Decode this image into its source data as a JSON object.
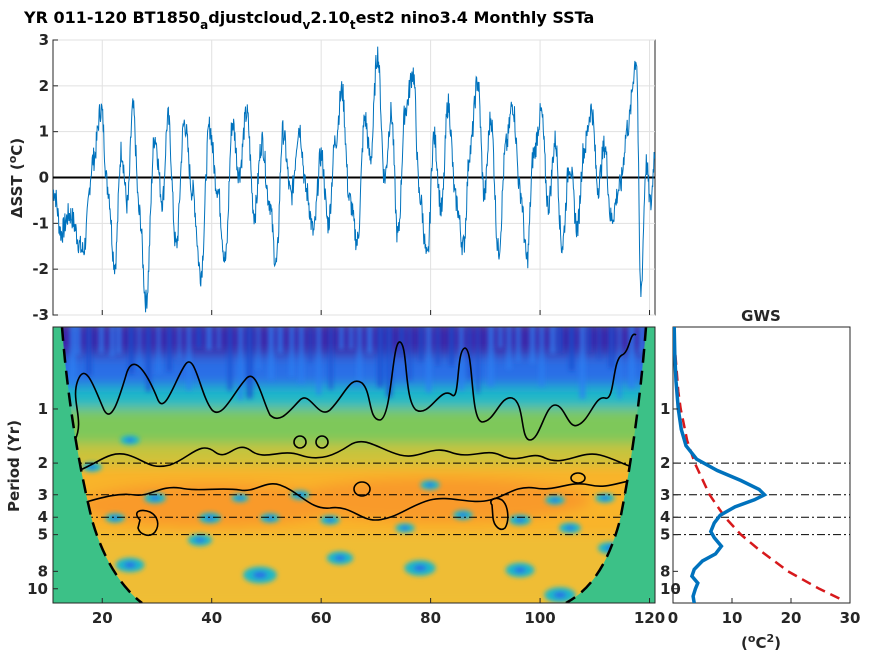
{
  "title": {
    "parts": [
      {
        "text": "YR 011-120 BT1850",
        "sub": false
      },
      {
        "text": "a",
        "sub": true
      },
      {
        "text": "djustcloud",
        "sub": false
      },
      {
        "text": "v",
        "sub": true
      },
      {
        "text": "2.10",
        "sub": false
      },
      {
        "text": "t",
        "sub": true
      },
      {
        "text": "est2 nino3.4 Monthly SSTa",
        "sub": false
      }
    ]
  },
  "chart_data": [
    {
      "type": "line",
      "panel": "timeseries",
      "ylabel_prefix": "ΔSST (",
      "ylabel_super": "o",
      "ylabel_suffix": "C)",
      "xlim": [
        11,
        121
      ],
      "ylim": [
        -3,
        3
      ],
      "yticks": [
        "-3",
        "-2",
        "-1",
        "0",
        "1",
        "2",
        "3"
      ],
      "yticks_values": [
        -3,
        -2,
        -1,
        0,
        1,
        2,
        3
      ],
      "grid": true,
      "line_color": "#0072bd",
      "zero_line_color": "#000000",
      "peaks": [
        {
          "x": 11.2,
          "y": -0.3
        },
        {
          "x": 12.5,
          "y": -1.2
        },
        {
          "x": 14.0,
          "y": -0.8
        },
        {
          "x": 16.5,
          "y": -1.6
        },
        {
          "x": 18.4,
          "y": 0.4
        },
        {
          "x": 19.8,
          "y": 1.5
        },
        {
          "x": 21.0,
          "y": -0.2
        },
        {
          "x": 22.3,
          "y": -1.9
        },
        {
          "x": 23.5,
          "y": 0.6
        },
        {
          "x": 24.6,
          "y": -0.6
        },
        {
          "x": 25.6,
          "y": 1.5
        },
        {
          "x": 26.8,
          "y": -0.8
        },
        {
          "x": 28.0,
          "y": -2.7
        },
        {
          "x": 29.6,
          "y": 0.9
        },
        {
          "x": 31.0,
          "y": -0.5
        },
        {
          "x": 32.0,
          "y": 1.3
        },
        {
          "x": 33.5,
          "y": -1.5
        },
        {
          "x": 35.0,
          "y": 1.2
        },
        {
          "x": 36.5,
          "y": -0.3
        },
        {
          "x": 38.0,
          "y": -2.1
        },
        {
          "x": 39.6,
          "y": 1.1
        },
        {
          "x": 41.0,
          "y": -0.2
        },
        {
          "x": 42.5,
          "y": -1.8
        },
        {
          "x": 43.8,
          "y": 1.2
        },
        {
          "x": 45.0,
          "y": 0.1
        },
        {
          "x": 46.4,
          "y": 1.4
        },
        {
          "x": 47.8,
          "y": -0.8
        },
        {
          "x": 49.2,
          "y": 0.8
        },
        {
          "x": 50.5,
          "y": -0.5
        },
        {
          "x": 51.8,
          "y": -1.9
        },
        {
          "x": 53.0,
          "y": 1.0
        },
        {
          "x": 54.5,
          "y": -0.4
        },
        {
          "x": 56.0,
          "y": 1.1
        },
        {
          "x": 57.3,
          "y": -0.3
        },
        {
          "x": 58.6,
          "y": -1.2
        },
        {
          "x": 60.0,
          "y": 0.5
        },
        {
          "x": 61.3,
          "y": -1.0
        },
        {
          "x": 62.6,
          "y": 0.8
        },
        {
          "x": 63.8,
          "y": 1.9
        },
        {
          "x": 65.2,
          "y": -0.5
        },
        {
          "x": 66.6,
          "y": -1.4
        },
        {
          "x": 68.0,
          "y": 1.3
        },
        {
          "x": 69.0,
          "y": 0.4
        },
        {
          "x": 70.3,
          "y": 2.7
        },
        {
          "x": 71.6,
          "y": 0.0
        },
        {
          "x": 72.8,
          "y": 1.4
        },
        {
          "x": 74.0,
          "y": -1.3
        },
        {
          "x": 75.4,
          "y": 1.5
        },
        {
          "x": 76.8,
          "y": 2.3
        },
        {
          "x": 78.0,
          "y": -0.4
        },
        {
          "x": 79.4,
          "y": -1.8
        },
        {
          "x": 80.6,
          "y": 0.9
        },
        {
          "x": 82.0,
          "y": -0.7
        },
        {
          "x": 83.2,
          "y": 1.6
        },
        {
          "x": 84.6,
          "y": -0.5
        },
        {
          "x": 86.0,
          "y": -1.5
        },
        {
          "x": 87.2,
          "y": 0.6
        },
        {
          "x": 88.6,
          "y": 2.1
        },
        {
          "x": 89.8,
          "y": -0.4
        },
        {
          "x": 91.0,
          "y": 1.3
        },
        {
          "x": 92.4,
          "y": -1.6
        },
        {
          "x": 93.8,
          "y": 0.7
        },
        {
          "x": 95.0,
          "y": 1.6
        },
        {
          "x": 96.4,
          "y": -0.3
        },
        {
          "x": 97.6,
          "y": -1.8
        },
        {
          "x": 98.8,
          "y": 0.5
        },
        {
          "x": 100.2,
          "y": 1.4
        },
        {
          "x": 101.5,
          "y": -0.6
        },
        {
          "x": 102.8,
          "y": 0.8
        },
        {
          "x": 104.0,
          "y": -1.5
        },
        {
          "x": 105.4,
          "y": 0.3
        },
        {
          "x": 106.8,
          "y": -1.1
        },
        {
          "x": 108.0,
          "y": 0.6
        },
        {
          "x": 109.4,
          "y": 1.5
        },
        {
          "x": 110.6,
          "y": -0.2
        },
        {
          "x": 111.8,
          "y": 0.7
        },
        {
          "x": 113.0,
          "y": -0.9
        },
        {
          "x": 114.6,
          "y": -0.2
        },
        {
          "x": 116.0,
          "y": 1.1
        },
        {
          "x": 117.6,
          "y": 2.6
        },
        {
          "x": 118.4,
          "y": -2.5
        },
        {
          "x": 119.4,
          "y": 0.3
        },
        {
          "x": 120.2,
          "y": -0.6
        },
        {
          "x": 121.0,
          "y": 0.6
        }
      ]
    },
    {
      "type": "heatmap",
      "panel": "wavelet",
      "ylabel": "Period (Yr)",
      "xlim": [
        11,
        121
      ],
      "xticks": [
        "20",
        "40",
        "60",
        "80",
        "100",
        "120"
      ],
      "xticks_values": [
        20,
        40,
        60,
        80,
        100,
        120
      ],
      "ylim_period": [
        0.35,
        12
      ],
      "yscale": "log",
      "yticks": [
        "1",
        "2",
        "3",
        "4",
        "5",
        "8",
        "10"
      ],
      "yticks_values": [
        1,
        2,
        3,
        4,
        5,
        8,
        10
      ],
      "reference_periods": [
        2,
        3,
        4,
        5
      ],
      "colormap": [
        "#3e26a8",
        "#2a7ff2",
        "#1fb8c8",
        "#52c86e",
        "#cbc33a",
        "#fac228",
        "#f99a2a"
      ],
      "cone_fill": "#3cc187",
      "significance_contour_color": "#000000"
    },
    {
      "type": "line",
      "panel": "global-wavelet-spectrum",
      "title": "GWS",
      "xlabel_prefix": "(",
      "xlabel_super_a": "o",
      "xlabel_mid": "C",
      "xlabel_super_b": "2",
      "xlabel_suffix": ")",
      "xlim": [
        0,
        30
      ],
      "xticks": [
        "0",
        "10",
        "20",
        "30"
      ],
      "xticks_values": [
        0,
        10,
        20,
        30
      ],
      "yscale": "log",
      "yticks": [
        "1",
        "2",
        "3",
        "4",
        "5",
        "8",
        "10"
      ],
      "yticks_values": [
        1,
        2,
        3,
        4,
        5,
        8,
        10
      ],
      "series": [
        {
          "kind": "spectrum",
          "color": "#0072bd",
          "points": [
            {
              "period": 0.35,
              "power": 0.2
            },
            {
              "period": 0.5,
              "power": 0.3
            },
            {
              "period": 0.7,
              "power": 0.5
            },
            {
              "period": 1.0,
              "power": 0.9
            },
            {
              "period": 1.3,
              "power": 1.4
            },
            {
              "period": 1.6,
              "power": 2.2
            },
            {
              "period": 1.9,
              "power": 4.0
            },
            {
              "period": 2.2,
              "power": 7.5
            },
            {
              "period": 2.5,
              "power": 11.5
            },
            {
              "period": 2.8,
              "power": 14.6
            },
            {
              "period": 3.0,
              "power": 15.5
            },
            {
              "period": 3.2,
              "power": 13.8
            },
            {
              "period": 3.5,
              "power": 10.5
            },
            {
              "period": 3.9,
              "power": 8.0
            },
            {
              "period": 4.3,
              "power": 7.0
            },
            {
              "period": 4.8,
              "power": 6.4
            },
            {
              "period": 5.2,
              "power": 7.0
            },
            {
              "period": 5.8,
              "power": 8.2
            },
            {
              "period": 6.4,
              "power": 7.2
            },
            {
              "period": 7.0,
              "power": 5.0
            },
            {
              "period": 7.8,
              "power": 3.6
            },
            {
              "period": 8.5,
              "power": 3.2
            },
            {
              "period": 9.3,
              "power": 4.2
            },
            {
              "period": 10.0,
              "power": 3.8
            },
            {
              "period": 11.0,
              "power": 3.4
            },
            {
              "period": 12.0,
              "power": 3.6
            }
          ]
        },
        {
          "kind": "significance",
          "color": "#d7191c",
          "dashed": true,
          "points": [
            {
              "period": 0.5,
              "power": 0.4
            },
            {
              "period": 0.8,
              "power": 0.9
            },
            {
              "period": 1.0,
              "power": 1.3
            },
            {
              "period": 1.5,
              "power": 2.4
            },
            {
              "period": 2.0,
              "power": 3.7
            },
            {
              "period": 3.0,
              "power": 6.2
            },
            {
              "period": 4.0,
              "power": 8.8
            },
            {
              "period": 5.0,
              "power": 11.5
            },
            {
              "period": 6.0,
              "power": 14.4
            },
            {
              "period": 8.0,
              "power": 19.5
            },
            {
              "period": 10.0,
              "power": 24.8
            },
            {
              "period": 11.5,
              "power": 28.6
            }
          ]
        }
      ]
    }
  ]
}
